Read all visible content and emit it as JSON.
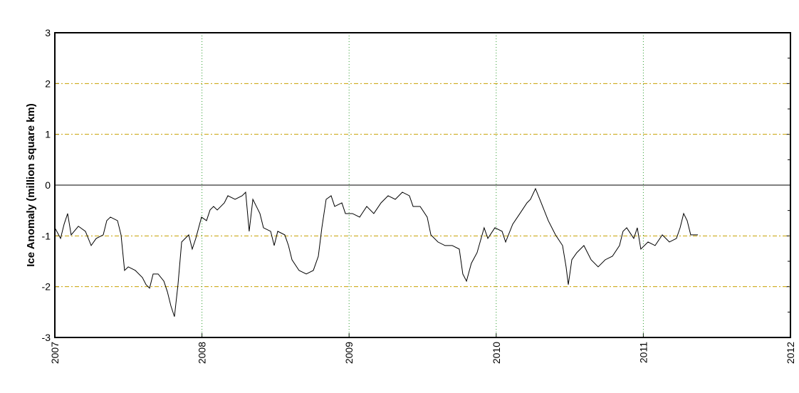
{
  "chart_data": {
    "type": "line",
    "ylabel": "Ice Anomaly (million square km)",
    "x": [
      2007.0,
      2007.039,
      2007.063,
      2007.087,
      2007.111,
      2007.16,
      2007.208,
      2007.247,
      2007.281,
      2007.329,
      2007.353,
      2007.378,
      2007.426,
      2007.45,
      2007.474,
      2007.499,
      2007.547,
      2007.595,
      2007.62,
      2007.644,
      2007.668,
      2007.702,
      2007.741,
      2007.765,
      2007.789,
      2007.813,
      2007.837,
      2007.862,
      2007.886,
      2007.91,
      2007.934,
      2007.958,
      2007.997,
      2008.031,
      2008.055,
      2008.079,
      2008.104,
      2008.152,
      2008.176,
      2008.225,
      2008.273,
      2008.297,
      2008.321,
      2008.346,
      2008.37,
      2008.394,
      2008.418,
      2008.467,
      2008.491,
      2008.515,
      2008.563,
      2008.588,
      2008.612,
      2008.66,
      2008.709,
      2008.757,
      2008.791,
      2008.815,
      2008.844,
      2008.878,
      2008.902,
      2008.951,
      2008.975,
      2009.023,
      2009.072,
      2009.12,
      2009.168,
      2009.217,
      2009.265,
      2009.314,
      2009.362,
      2009.41,
      2009.435,
      2009.483,
      2009.531,
      2009.556,
      2009.604,
      2009.652,
      2009.701,
      2009.749,
      2009.773,
      2009.798,
      2009.831,
      2009.87,
      2009.918,
      2009.943,
      2009.991,
      2010.04,
      2010.064,
      2010.112,
      2010.161,
      2010.209,
      2010.233,
      2010.267,
      2010.306,
      2010.354,
      2010.403,
      2010.451,
      2010.475,
      2010.49,
      2010.514,
      2010.548,
      2010.596,
      2010.645,
      2010.693,
      2010.741,
      2010.79,
      2010.838,
      2010.862,
      2010.887,
      2010.935,
      2010.959,
      2010.983,
      2011.032,
      2011.08,
      2011.129,
      2011.177,
      2011.225,
      2011.25,
      2011.274,
      2011.298,
      2011.322,
      2011.371
    ],
    "series": [
      {
        "name": "anomaly",
        "color": "#000000",
        "values": [
          -0.84,
          -1.05,
          -0.77,
          -0.56,
          -0.98,
          -0.81,
          -0.91,
          -1.19,
          -1.05,
          -0.98,
          -0.7,
          -0.63,
          -0.7,
          -0.98,
          -1.68,
          -1.61,
          -1.68,
          -1.82,
          -1.96,
          -2.03,
          -1.75,
          -1.75,
          -1.89,
          -2.1,
          -2.38,
          -2.59,
          -1.96,
          -1.12,
          -1.05,
          -0.98,
          -1.26,
          -1.05,
          -0.63,
          -0.7,
          -0.49,
          -0.42,
          -0.49,
          -0.35,
          -0.21,
          -0.28,
          -0.21,
          -0.14,
          -0.91,
          -0.28,
          -0.42,
          -0.56,
          -0.84,
          -0.91,
          -1.19,
          -0.91,
          -0.98,
          -1.19,
          -1.47,
          -1.68,
          -1.75,
          -1.68,
          -1.4,
          -0.84,
          -0.28,
          -0.21,
          -0.42,
          -0.35,
          -0.56,
          -0.56,
          -0.63,
          -0.42,
          -0.56,
          -0.35,
          -0.21,
          -0.28,
          -0.14,
          -0.21,
          -0.42,
          -0.42,
          -0.63,
          -0.98,
          -1.12,
          -1.19,
          -1.19,
          -1.26,
          -1.75,
          -1.89,
          -1.54,
          -1.33,
          -0.84,
          -1.05,
          -0.84,
          -0.91,
          -1.12,
          -0.77,
          -0.56,
          -0.35,
          -0.28,
          -0.07,
          -0.35,
          -0.7,
          -0.98,
          -1.19,
          -1.61,
          -1.96,
          -1.47,
          -1.33,
          -1.19,
          -1.47,
          -1.61,
          -1.47,
          -1.4,
          -1.19,
          -0.91,
          -0.84,
          -1.05,
          -0.84,
          -1.26,
          -1.12,
          -1.19,
          -0.98,
          -1.12,
          -1.05,
          -0.84,
          -0.56,
          -0.7,
          -0.98,
          -0.98
        ]
      }
    ],
    "xlim": [
      2007,
      2012
    ],
    "xticks": [
      2007,
      2008,
      2009,
      2010,
      2011,
      2012
    ],
    "ylim": [
      -3,
      3
    ],
    "yticks": [
      -3,
      -2,
      -1,
      0,
      1,
      2,
      3
    ],
    "grid": true,
    "zero_line": true
  }
}
